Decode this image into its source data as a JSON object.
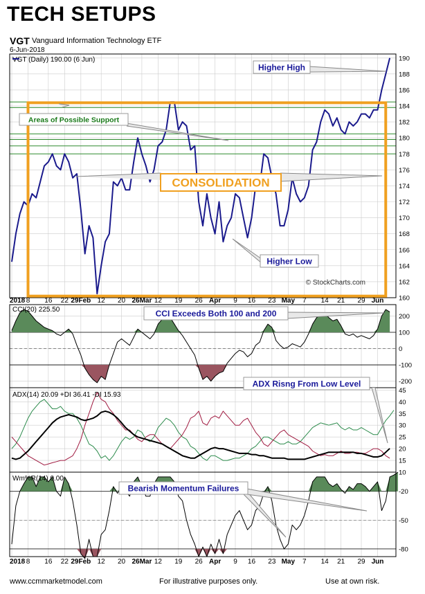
{
  "header": {
    "title": "TECH SETUPS",
    "symbol": "VGT",
    "name": "Vanguard Information Technology ETF",
    "date": "6-Jun-2018",
    "watermark": "© StockCharts.com"
  },
  "footer": {
    "left": "www.ccmmarketmodel.com",
    "center": "For illustrative purposes only.",
    "right": "Use at own risk."
  },
  "colors": {
    "price": "#1a1a8c",
    "grid": "#cccccc",
    "support": "#2e8b2e",
    "consolidation": "#f0a020",
    "pos_fill": "#5a8a5a",
    "neg_fill": "#9a5560",
    "plus_di": "#2a8a4a",
    "minus_di": "#a01a40"
  },
  "chart_data": [
    {
      "type": "line",
      "legend": "VGT (Daily) 190.00 (6 Jun)",
      "x_tick_labels": [
        "2018",
        "8",
        "16",
        "22",
        "29Feb",
        "12",
        "20",
        "26Mar",
        "12",
        "19",
        "26",
        "Apr",
        "9",
        "16",
        "23",
        "May",
        "7",
        "14",
        "21",
        "29",
        "Jun"
      ],
      "y_ticks": [
        160,
        162,
        164,
        166,
        168,
        170,
        172,
        174,
        176,
        178,
        180,
        182,
        184,
        186,
        188,
        190
      ],
      "ylim": [
        160,
        190.5
      ],
      "series": [
        {
          "name": "VGT (Daily)",
          "values": [
            164.5,
            168,
            170.5,
            172,
            171.5,
            173,
            172.5,
            174.5,
            176.5,
            177,
            178,
            176.5,
            176,
            178,
            177,
            175,
            175.5,
            171,
            165.5,
            169,
            167.5,
            160.5,
            164,
            167,
            168,
            174.5,
            174,
            175,
            173.5,
            173.5,
            177,
            180,
            178,
            176.5,
            174.5,
            176,
            179,
            179.5,
            181,
            184.5,
            184.5,
            181,
            182,
            181.5,
            178.5,
            179,
            172,
            169,
            173,
            170,
            168,
            172,
            167,
            169,
            170,
            173,
            172.5,
            170,
            167.5,
            170,
            174,
            174,
            178,
            177.5,
            175,
            173,
            169,
            169,
            171,
            175,
            173,
            172,
            172.5,
            174,
            178.5,
            179.5,
            182,
            183.5,
            183,
            181.5,
            182.5,
            181,
            180.5,
            182,
            181.5,
            182,
            183,
            183,
            182.5,
            183.5,
            183.5,
            186,
            188,
            190
          ]
        }
      ],
      "support_levels": [
        184.5,
        183.8,
        180.5,
        179.8,
        179,
        178
      ],
      "consolidation_box": {
        "x_from_session": 4,
        "x_to_session": 92,
        "y_from": 160.2,
        "y_to": 184.4
      },
      "annotations": [
        "Higher High",
        "Areas of Possible Support",
        "CONSOLIDATION",
        "Higher Low"
      ]
    },
    {
      "type": "area",
      "legend": "CCI(20) 225.50",
      "y_ticks": [
        -200,
        -100,
        0,
        100,
        200
      ],
      "ylim": [
        -240,
        270
      ],
      "series": [
        {
          "name": "CCI(20)",
          "values": [
            110,
            170,
            220,
            240,
            230,
            200,
            170,
            150,
            130,
            120,
            110,
            90,
            80,
            100,
            120,
            90,
            20,
            -40,
            -120,
            -160,
            -190,
            -210,
            -170,
            -190,
            -100,
            -30,
            40,
            60,
            40,
            20,
            70,
            120,
            100,
            80,
            60,
            90,
            150,
            180,
            200,
            190,
            150,
            110,
            80,
            40,
            0,
            -40,
            -120,
            -190,
            -170,
            -200,
            -170,
            -150,
            -140,
            -90,
            -60,
            -30,
            -10,
            -20,
            -50,
            -30,
            20,
            40,
            110,
            150,
            130,
            50,
            20,
            0,
            10,
            30,
            20,
            10,
            40,
            90,
            150,
            190,
            210,
            220,
            190,
            170,
            180,
            140,
            90,
            80,
            90,
            70,
            80,
            70,
            60,
            80,
            120,
            200,
            240,
            225
          ]
        }
      ],
      "annotations": [
        "CCI Exceeds Both 100 and 200"
      ]
    },
    {
      "type": "line",
      "legend": "ADX(14) 20.09 +DI 36.41 -DI 15.93",
      "y_ticks": [
        10,
        15,
        20,
        25,
        30,
        35,
        40,
        45
      ],
      "ylim": [
        10,
        46
      ],
      "series": [
        {
          "name": "ADX(14) 20.09",
          "values": [
            16,
            15.5,
            16,
            17.5,
            19,
            21,
            23,
            25,
            27,
            29,
            31,
            32.5,
            33.5,
            34,
            34.5,
            34,
            33.5,
            32.5,
            32,
            32.5,
            33,
            34,
            35.5,
            36,
            35.5,
            34.5,
            33,
            31,
            29,
            27.5,
            26,
            25,
            24.5,
            24,
            23.5,
            23,
            22.5,
            22,
            21,
            20,
            19,
            18,
            17,
            16.5,
            16,
            16,
            17,
            18,
            19,
            20,
            20.5,
            20,
            20,
            19.5,
            19,
            18.5,
            18,
            18,
            18,
            17.5,
            17.5,
            17,
            17,
            16.5,
            16,
            16,
            16,
            16,
            15.5,
            15.5,
            15.5,
            15.5,
            15.5,
            16,
            16.5,
            17,
            17.5,
            18,
            18.5,
            18.5,
            18.5,
            18.5,
            18.5,
            18.5,
            18.5,
            18,
            18,
            17.5,
            17,
            16.5,
            16.5,
            17,
            18.5,
            20.09
          ]
        },
        {
          "name": "+DI 36.41",
          "values": [
            20,
            22,
            25,
            29,
            33,
            36,
            38,
            40,
            41,
            39,
            37,
            37,
            38,
            36,
            35,
            35,
            33,
            30,
            26,
            22,
            21,
            19,
            16,
            17,
            15,
            17,
            20,
            23,
            25,
            24,
            25,
            28,
            27,
            24,
            23,
            25,
            29,
            31,
            33,
            32,
            30,
            27,
            25,
            24,
            21,
            20,
            18,
            16,
            15,
            17,
            17,
            16,
            15,
            15,
            15.5,
            16,
            16,
            17,
            18,
            20,
            21,
            23,
            25,
            25,
            24,
            23,
            22,
            22,
            23,
            22,
            22,
            23,
            25,
            27,
            29,
            30,
            31,
            30.5,
            30,
            30.5,
            31,
            29,
            28,
            29,
            28,
            28,
            29,
            28,
            27,
            26,
            26,
            29,
            32,
            34,
            36.41
          ]
        },
        {
          "name": "-DI 15.93",
          "values": [
            25,
            23,
            21,
            19,
            17,
            16,
            15,
            14,
            13,
            13.5,
            14,
            14.5,
            15,
            15,
            16,
            17,
            20,
            24,
            30,
            35,
            40,
            44,
            41,
            40,
            37,
            35,
            32,
            30,
            28,
            28,
            26,
            24,
            23,
            25,
            26,
            26,
            24,
            22,
            21,
            20,
            22,
            24,
            26,
            29,
            33,
            34,
            36,
            31,
            30,
            33,
            34,
            33,
            36,
            34,
            32,
            30,
            30,
            32,
            33,
            30,
            27,
            25,
            22,
            21,
            23,
            25,
            27,
            28,
            26,
            25,
            24,
            23,
            22,
            21,
            19,
            18,
            17,
            17.5,
            17,
            17,
            18,
            19,
            18,
            18,
            18.5,
            18.5,
            18,
            18,
            19,
            20,
            20,
            19,
            17,
            15.93
          ]
        }
      ],
      "annotations": [
        "ADX Risng From Low Level"
      ]
    },
    {
      "type": "area",
      "legend": "Wm%R(14) 0.00",
      "y_ticks": [
        -20,
        -50,
        -80
      ],
      "ylim": [
        -88,
        0
      ],
      "series": [
        {
          "name": "Wm%R(14)",
          "values": [
            -75,
            -35,
            -20,
            -12,
            -5,
            -5,
            -15,
            -5,
            -5,
            -10,
            -5,
            -20,
            -25,
            -5,
            -12,
            -30,
            -55,
            -85,
            -90,
            -70,
            -88,
            -88,
            -65,
            -60,
            -40,
            -15,
            -22,
            -15,
            -20,
            -25,
            -10,
            -5,
            -15,
            -25,
            -25,
            -12,
            -5,
            -5,
            -5,
            -5,
            -10,
            -25,
            -30,
            -50,
            -65,
            -75,
            -88,
            -78,
            -88,
            -75,
            -85,
            -70,
            -85,
            -65,
            -55,
            -45,
            -40,
            -50,
            -60,
            -55,
            -40,
            -35,
            -22,
            -15,
            -30,
            -55,
            -70,
            -80,
            -75,
            -55,
            -60,
            -55,
            -45,
            -30,
            -10,
            -5,
            -5,
            -5,
            -12,
            -15,
            -12,
            -18,
            -22,
            -15,
            -18,
            -12,
            -12,
            -15,
            -20,
            -15,
            -10,
            -40,
            -30,
            -5,
            -3,
            0
          ]
        }
      ],
      "annotations": [
        "Bearish Momentum Failures"
      ]
    }
  ]
}
